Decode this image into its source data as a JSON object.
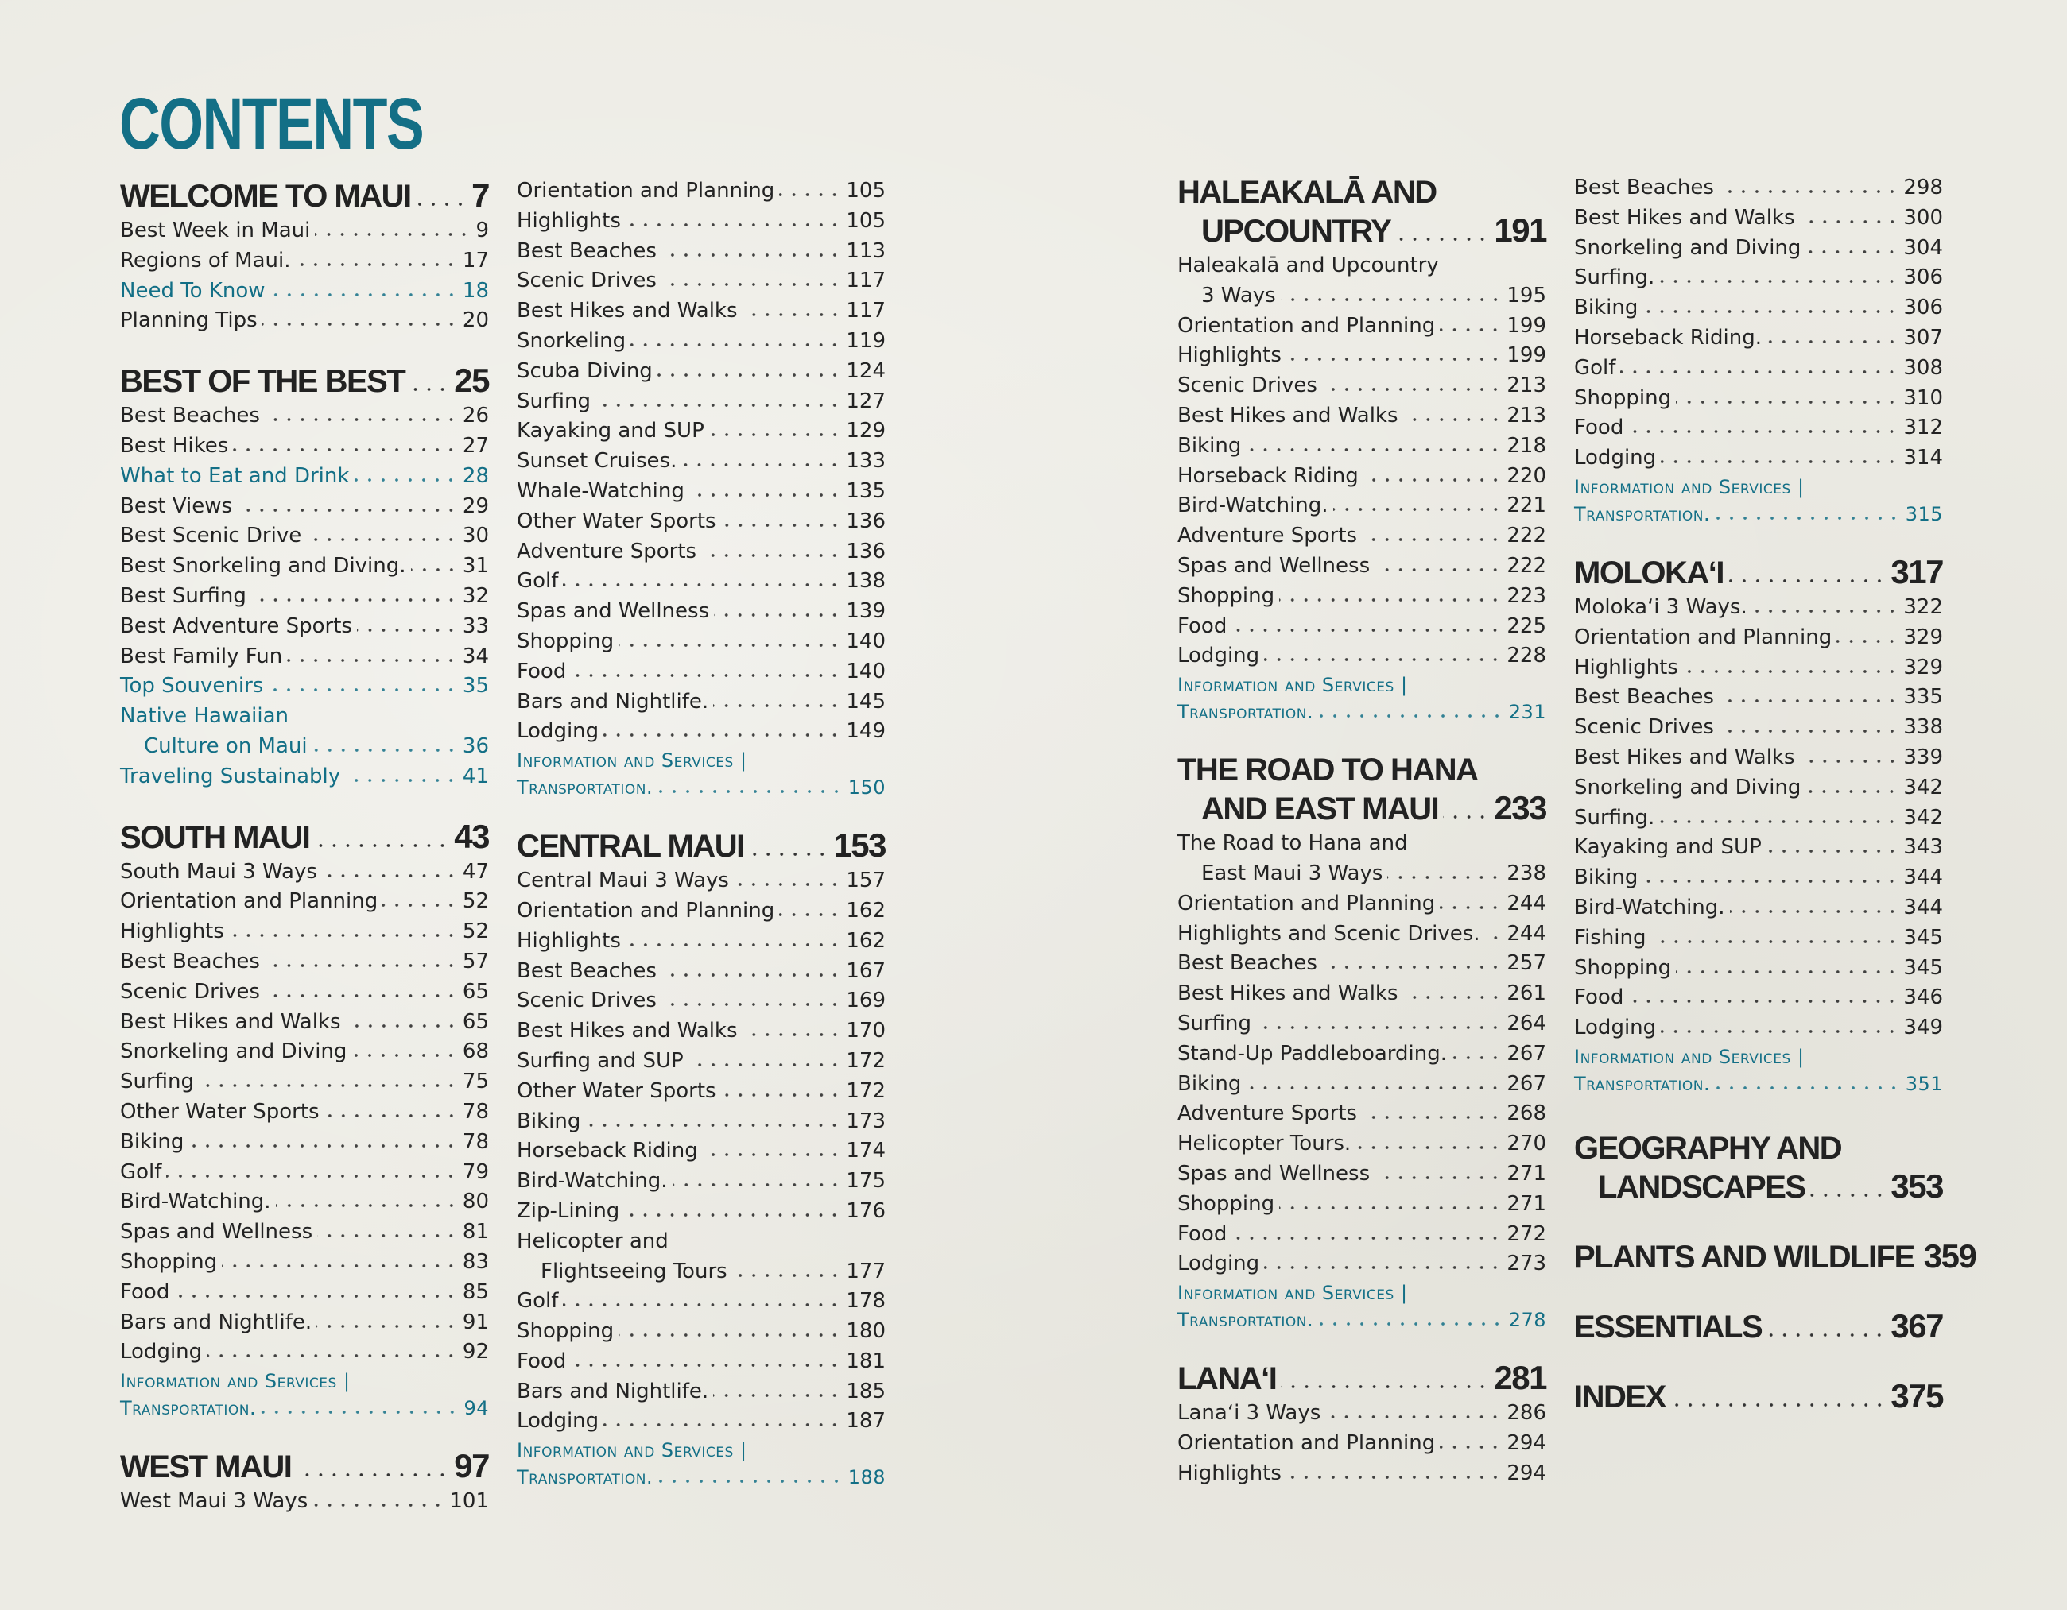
{
  "accent": "#136f86",
  "title": "CONTENTS",
  "columns": [
    [
      {
        "heading": [
          "WELCOME TO MAUI"
        ],
        "page": "7",
        "entries": [
          {
            "label": "Best Week in Maui",
            "page": "9"
          },
          {
            "label": "Regions of Maui.",
            "page": "17"
          },
          {
            "label": "Need To Know",
            "page": "18",
            "highlight": true
          },
          {
            "label": "Planning Tips",
            "page": "20"
          }
        ]
      },
      {
        "heading": [
          "BEST OF THE BEST"
        ],
        "page": "25",
        "entries": [
          {
            "label": "Best Beaches",
            "page": "26"
          },
          {
            "label": "Best Hikes",
            "page": "27"
          },
          {
            "label": "What to Eat and Drink",
            "page": "28",
            "highlight": true
          },
          {
            "label": "Best Views",
            "page": "29"
          },
          {
            "label": "Best Scenic Drive",
            "page": "30"
          },
          {
            "label": "Best Snorkeling and Diving.",
            "page": "31"
          },
          {
            "label": "Best Surfing",
            "page": "32"
          },
          {
            "label": "Best Adventure Sports",
            "page": "33"
          },
          {
            "label": "Best Family Fun",
            "page": "34"
          },
          {
            "label": "Top Souvenirs",
            "page": "35",
            "highlight": true
          },
          {
            "label": "Native Hawaiian",
            "cont": "Culture on Maui",
            "page": "36",
            "highlight": true
          },
          {
            "label": "Traveling Sustainably",
            "page": "41",
            "highlight": true
          }
        ]
      },
      {
        "heading": [
          "SOUTH MAUI"
        ],
        "page": "43",
        "entries": [
          {
            "label": "South Maui 3 Ways",
            "page": "47"
          },
          {
            "label": "Orientation and Planning",
            "page": "52"
          },
          {
            "label": "Highlights",
            "page": "52"
          },
          {
            "label": "Best Beaches",
            "page": "57"
          },
          {
            "label": "Scenic Drives",
            "page": "65"
          },
          {
            "label": "Best Hikes and Walks",
            "page": "65"
          },
          {
            "label": "Snorkeling and Diving",
            "page": "68"
          },
          {
            "label": "Surfing",
            "page": "75"
          },
          {
            "label": "Other Water Sports",
            "page": "78"
          },
          {
            "label": "Biking",
            "page": "78"
          },
          {
            "label": "Golf",
            "page": "79"
          },
          {
            "label": "Bird-Watching.",
            "page": "80"
          },
          {
            "label": "Spas and Wellness",
            "page": "81"
          },
          {
            "label": "Shopping",
            "page": "83"
          },
          {
            "label": "Food",
            "page": "85"
          },
          {
            "label": "Bars and Nightlife.",
            "page": "91"
          },
          {
            "label": "Lodging",
            "page": "92"
          }
        ],
        "info": {
          "line1": "Information and Services |",
          "line2": "Transportation.",
          "page": "94"
        }
      },
      {
        "heading": [
          "WEST MAUI"
        ],
        "page": "97",
        "entries": [
          {
            "label": "West Maui 3 Ways",
            "page": "101"
          }
        ]
      }
    ],
    [
      {
        "entries": [
          {
            "label": "Orientation and Planning",
            "page": "105"
          },
          {
            "label": "Highlights",
            "page": "105"
          },
          {
            "label": "Best Beaches",
            "page": "113"
          },
          {
            "label": "Scenic Drives",
            "page": "117"
          },
          {
            "label": "Best Hikes and Walks",
            "page": "117"
          },
          {
            "label": "Snorkeling",
            "page": "119"
          },
          {
            "label": "Scuba Diving",
            "page": "124"
          },
          {
            "label": "Surfing",
            "page": "127"
          },
          {
            "label": "Kayaking and SUP",
            "page": "129"
          },
          {
            "label": "Sunset Cruises.",
            "page": "133"
          },
          {
            "label": "Whale-Watching",
            "page": "135"
          },
          {
            "label": "Other Water Sports",
            "page": "136"
          },
          {
            "label": "Adventure Sports",
            "page": "136"
          },
          {
            "label": "Golf",
            "page": "138"
          },
          {
            "label": "Spas and Wellness",
            "page": "139"
          },
          {
            "label": "Shopping",
            "page": "140"
          },
          {
            "label": "Food",
            "page": "140"
          },
          {
            "label": "Bars and Nightlife.",
            "page": "145"
          },
          {
            "label": "Lodging",
            "page": "149"
          }
        ],
        "info": {
          "line1": "Information and Services |",
          "line2": "Transportation.",
          "page": "150"
        }
      },
      {
        "heading": [
          "CENTRAL MAUI"
        ],
        "page": "153",
        "entries": [
          {
            "label": "Central Maui 3 Ways",
            "page": "157"
          },
          {
            "label": "Orientation and Planning",
            "page": "162"
          },
          {
            "label": "Highlights",
            "page": "162"
          },
          {
            "label": "Best Beaches",
            "page": "167"
          },
          {
            "label": "Scenic Drives",
            "page": "169"
          },
          {
            "label": "Best Hikes and Walks",
            "page": "170"
          },
          {
            "label": "Surfing and SUP",
            "page": "172"
          },
          {
            "label": "Other Water Sports",
            "page": "172"
          },
          {
            "label": "Biking",
            "page": "173"
          },
          {
            "label": "Horseback Riding",
            "page": "174"
          },
          {
            "label": "Bird-Watching.",
            "page": "175"
          },
          {
            "label": "Zip-Lining",
            "page": "176"
          },
          {
            "label": "Helicopter and",
            "cont": "Flightseeing Tours",
            "page": "177"
          },
          {
            "label": "Golf",
            "page": "178"
          },
          {
            "label": "Shopping",
            "page": "180"
          },
          {
            "label": "Food",
            "page": "181"
          },
          {
            "label": "Bars and Nightlife.",
            "page": "185"
          },
          {
            "label": "Lodging",
            "page": "187"
          }
        ],
        "info": {
          "line1": "Information and Services |",
          "line2": "Transportation.",
          "page": "188"
        }
      }
    ],
    [
      {
        "heading": [
          "HALEAKALĀ AND",
          "UPCOUNTRY"
        ],
        "page": "191",
        "entries": [
          {
            "label": "Haleakalā and Upcountry",
            "cont": "3 Ways",
            "page": "195"
          },
          {
            "label": "Orientation and Planning",
            "page": "199"
          },
          {
            "label": "Highlights",
            "page": "199"
          },
          {
            "label": "Scenic Drives",
            "page": "213"
          },
          {
            "label": "Best Hikes and Walks",
            "page": "213"
          },
          {
            "label": "Biking",
            "page": "218"
          },
          {
            "label": "Horseback Riding",
            "page": "220"
          },
          {
            "label": "Bird-Watching.",
            "page": "221"
          },
          {
            "label": "Adventure Sports",
            "page": "222"
          },
          {
            "label": "Spas and Wellness",
            "page": "222"
          },
          {
            "label": "Shopping",
            "page": "223"
          },
          {
            "label": "Food",
            "page": "225"
          },
          {
            "label": "Lodging",
            "page": "228"
          }
        ],
        "info": {
          "line1": "Information and Services |",
          "line2": "Transportation.",
          "page": "231"
        }
      },
      {
        "heading": [
          "THE ROAD TO HANA",
          "AND EAST MAUI"
        ],
        "page": "233",
        "entries": [
          {
            "label": "The Road to Hana and",
            "cont": "East Maui 3 Ways",
            "page": "238"
          },
          {
            "label": "Orientation and Planning",
            "page": "244"
          },
          {
            "label": "Highlights and Scenic Drives.",
            "page": "244"
          },
          {
            "label": "Best Beaches",
            "page": "257"
          },
          {
            "label": "Best Hikes and Walks",
            "page": "261"
          },
          {
            "label": "Surfing",
            "page": "264"
          },
          {
            "label": "Stand-Up Paddleboarding.",
            "page": "267"
          },
          {
            "label": "Biking",
            "page": "267"
          },
          {
            "label": "Adventure Sports",
            "page": "268"
          },
          {
            "label": "Helicopter Tours.",
            "page": "270"
          },
          {
            "label": "Spas and Wellness",
            "page": "271"
          },
          {
            "label": "Shopping",
            "page": "271"
          },
          {
            "label": "Food",
            "page": "272"
          },
          {
            "label": "Lodging",
            "page": "273"
          }
        ],
        "info": {
          "line1": "Information and Services |",
          "line2": "Transportation.",
          "page": "278"
        }
      },
      {
        "heading": [
          "LANAʻI"
        ],
        "page": "281",
        "entries": [
          {
            "label": "Lanaʻi 3 Ways",
            "page": "286"
          },
          {
            "label": "Orientation and Planning",
            "page": "294"
          },
          {
            "label": "Highlights",
            "page": "294"
          }
        ]
      }
    ],
    [
      {
        "entries": [
          {
            "label": "Best Beaches",
            "page": "298"
          },
          {
            "label": "Best Hikes and Walks",
            "page": "300"
          },
          {
            "label": "Snorkeling and Diving",
            "page": "304"
          },
          {
            "label": "Surfing.",
            "page": "306"
          },
          {
            "label": "Biking",
            "page": "306"
          },
          {
            "label": "Horseback Riding.",
            "page": "307"
          },
          {
            "label": "Golf",
            "page": "308"
          },
          {
            "label": "Shopping",
            "page": "310"
          },
          {
            "label": "Food",
            "page": "312"
          },
          {
            "label": "Lodging",
            "page": "314"
          }
        ],
        "info": {
          "line1": "Information and Services |",
          "line2": "Transportation.",
          "page": "315"
        }
      },
      {
        "heading": [
          "MOLOKAʻI"
        ],
        "page": "317",
        "entries": [
          {
            "label": "Molokaʻi 3 Ways.",
            "page": "322"
          },
          {
            "label": "Orientation and Planning",
            "page": "329"
          },
          {
            "label": "Highlights",
            "page": "329"
          },
          {
            "label": "Best Beaches",
            "page": "335"
          },
          {
            "label": "Scenic Drives",
            "page": "338"
          },
          {
            "label": "Best Hikes and Walks",
            "page": "339"
          },
          {
            "label": "Snorkeling and Diving",
            "page": "342"
          },
          {
            "label": "Surfing.",
            "page": "342"
          },
          {
            "label": "Kayaking and SUP",
            "page": "343"
          },
          {
            "label": "Biking",
            "page": "344"
          },
          {
            "label": "Bird-Watching.",
            "page": "344"
          },
          {
            "label": "Fishing",
            "page": "345"
          },
          {
            "label": "Shopping",
            "page": "345"
          },
          {
            "label": "Food",
            "page": "346"
          },
          {
            "label": "Lodging",
            "page": "349"
          }
        ],
        "info": {
          "line1": "Information and Services |",
          "line2": "Transportation.",
          "page": "351"
        }
      },
      {
        "heading": [
          "GEOGRAPHY AND",
          "LANDSCAPES"
        ],
        "page": "353",
        "entries": [],
        "big": true
      },
      {
        "heading": [
          "PLANTS AND WILDLIFE"
        ],
        "page": "359",
        "entries": [],
        "big": true
      },
      {
        "heading": [
          "ESSENTIALS"
        ],
        "page": "367",
        "entries": [],
        "big": true
      },
      {
        "heading": [
          "INDEX"
        ],
        "page": "375",
        "entries": [],
        "big": true
      }
    ]
  ]
}
